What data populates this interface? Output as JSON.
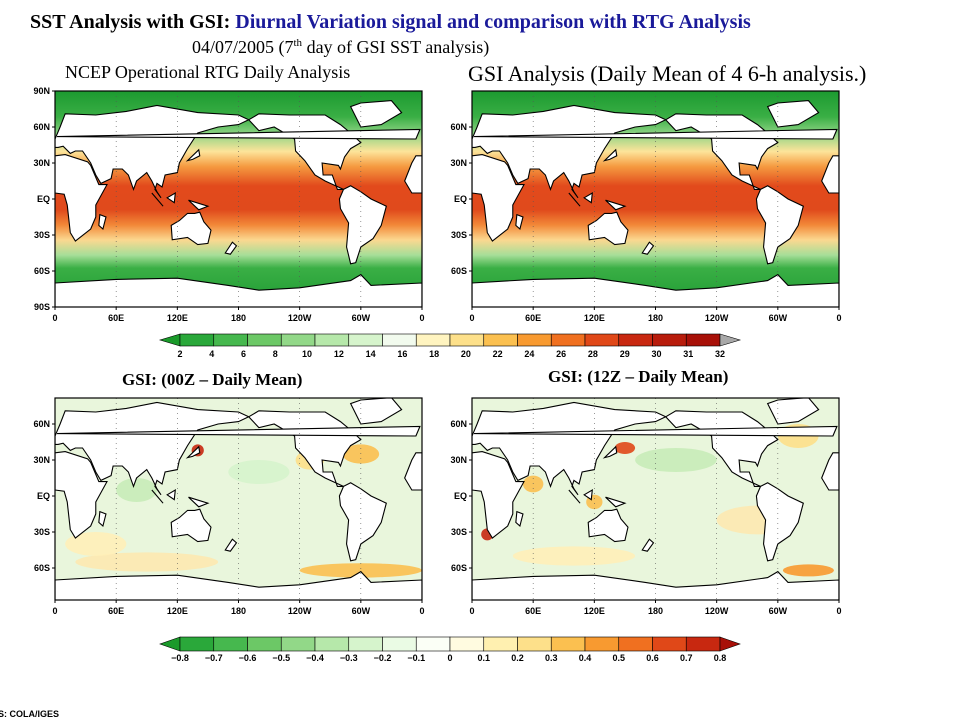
{
  "title": {
    "lead": "SST Analysis with GSI:",
    "rest": "Diurnal Variation signal and comparison with RTG Analysis"
  },
  "subtitle": {
    "before": "04/07/2005 (7",
    "sup": "th",
    "after": " day of GSI SST analysis)"
  },
  "panels": [
    {
      "title": "NCEP Operational RTG Daily Analysis",
      "lat_labels": [
        "90N",
        "60N",
        "30N",
        "EQ",
        "30S",
        "60S",
        "90S"
      ],
      "lon_labels": [
        "0",
        "60E",
        "120E",
        "180",
        "120W",
        "60W",
        "0"
      ]
    },
    {
      "title": "GSI Analysis (Daily Mean of 4 6-h analysis.)",
      "lat_labels": [
        "60N",
        "30N",
        "EQ",
        "30S",
        "60S"
      ],
      "lon_labels": [
        "0",
        "60E",
        "120E",
        "180",
        "120W",
        "60W",
        "0"
      ]
    },
    {
      "title": "GSI: (00Z – Daily Mean)",
      "lat_labels": [
        "60N",
        "30N",
        "EQ",
        "30S",
        "60S"
      ],
      "lon_labels": [
        "0",
        "60E",
        "120E",
        "180",
        "120W",
        "60W",
        "0"
      ]
    },
    {
      "title": "GSI: (12Z – Daily Mean)",
      "lat_labels": [
        "60N",
        "30N",
        "EQ",
        "30S",
        "60S"
      ],
      "lon_labels": [
        "0",
        "60E",
        "120E",
        "180",
        "120W",
        "60W",
        "0"
      ]
    }
  ],
  "colorbars": [
    {
      "labels": [
        "2",
        "4",
        "6",
        "8",
        "10",
        "12",
        "14",
        "16",
        "18",
        "20",
        "22",
        "24",
        "26",
        "28",
        "29",
        "30",
        "31",
        "32"
      ],
      "colors": [
        "#1a9a2a",
        "#2aa83a",
        "#46b84e",
        "#6cc866",
        "#92d888",
        "#b6e8aa",
        "#d6f4cc",
        "#f2fbee",
        "#fff4c0",
        "#fde08a",
        "#fbc050",
        "#f89a30",
        "#f07020",
        "#e04818",
        "#c82810",
        "#b81c0c",
        "#a81008",
        "#a8a8a8"
      ]
    },
    {
      "labels": [
        "−0.8",
        "−0.7",
        "−0.6",
        "−0.5",
        "−0.4",
        "−0.3",
        "−0.2",
        "−0.1",
        "0",
        "0.1",
        "0.2",
        "0.3",
        "0.4",
        "0.5",
        "0.6",
        "0.7",
        "0.8"
      ],
      "colors": [
        "#1a9a2a",
        "#2aa83a",
        "#46b84e",
        "#6cc866",
        "#92d888",
        "#b6e8aa",
        "#d6f4cc",
        "#eafbe4",
        "#fbfff6",
        "#fffbe0",
        "#fff0b0",
        "#fde08a",
        "#fbc050",
        "#f89a30",
        "#f07020",
        "#e04818",
        "#c82810",
        "#a81008"
      ]
    }
  ],
  "footer": "S: COLA/IGES"
}
